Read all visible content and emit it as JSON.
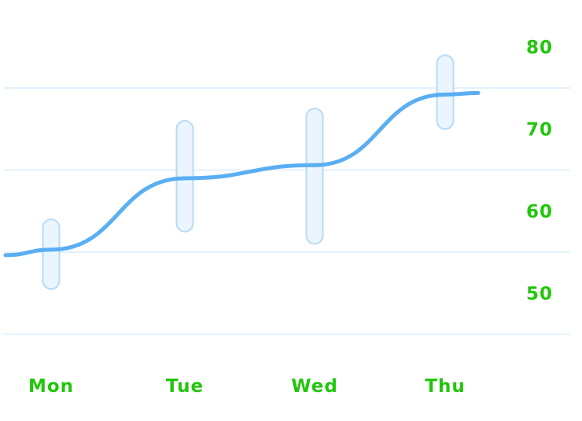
{
  "chart_data": {
    "type": "line",
    "categories": [
      "Mon",
      "Tue",
      "Wed",
      "Thu"
    ],
    "series": [
      {
        "values": [
          55.3,
          64.0,
          65.6,
          74.2
        ],
        "range_low": [
          50.5,
          57.5,
          56.0,
          70.0
        ],
        "range_high": [
          59.0,
          71.0,
          72.5,
          79.0
        ]
      }
    ],
    "y_ticks": [
      50,
      60,
      70,
      80
    ],
    "ylim": [
      43,
      83
    ],
    "grid": true,
    "xlabel": "",
    "ylabel": ""
  },
  "colors": {
    "line": "#5aaef2",
    "range_fill": "#eaf5fd",
    "range_stroke": "#b7dbf5",
    "grid": "#e3f1fb",
    "label": "#22c60c"
  }
}
